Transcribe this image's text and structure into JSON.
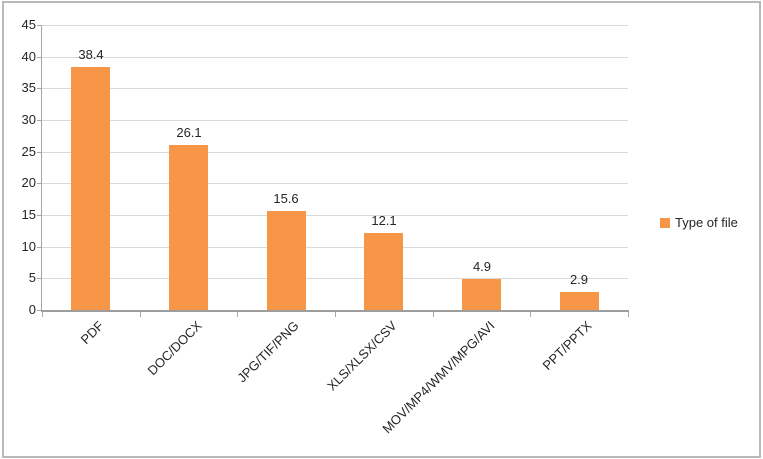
{
  "chart_data": {
    "type": "bar",
    "title": "",
    "xlabel": "",
    "ylabel": "",
    "categories": [
      "PDF",
      "DOC/DOCX",
      "JPG/TIF/PNG",
      "XLS/XLSX/CSV",
      "MOV/MP4/WMV/MPG/AVI",
      "PPT/PPTX"
    ],
    "values": [
      38.4,
      26.1,
      15.6,
      12.1,
      4.9,
      2.9
    ],
    "value_labels": [
      "38.4",
      "26.1",
      "15.6",
      "12.1",
      "4.9",
      "2.9"
    ],
    "ylim": [
      0,
      45
    ],
    "ytick_step": 5,
    "ytick_labels": [
      "0",
      "5",
      "10",
      "15",
      "20",
      "25",
      "30",
      "35",
      "40",
      "45"
    ],
    "grid": true,
    "legend_position": "right",
    "legend": "Type of file",
    "bar_color": "#F79646",
    "gridline_color": "#d9d9d9",
    "axis_color": "#a6a6a6",
    "text_color": "#262626",
    "frame_color": "#b9b9b9"
  }
}
